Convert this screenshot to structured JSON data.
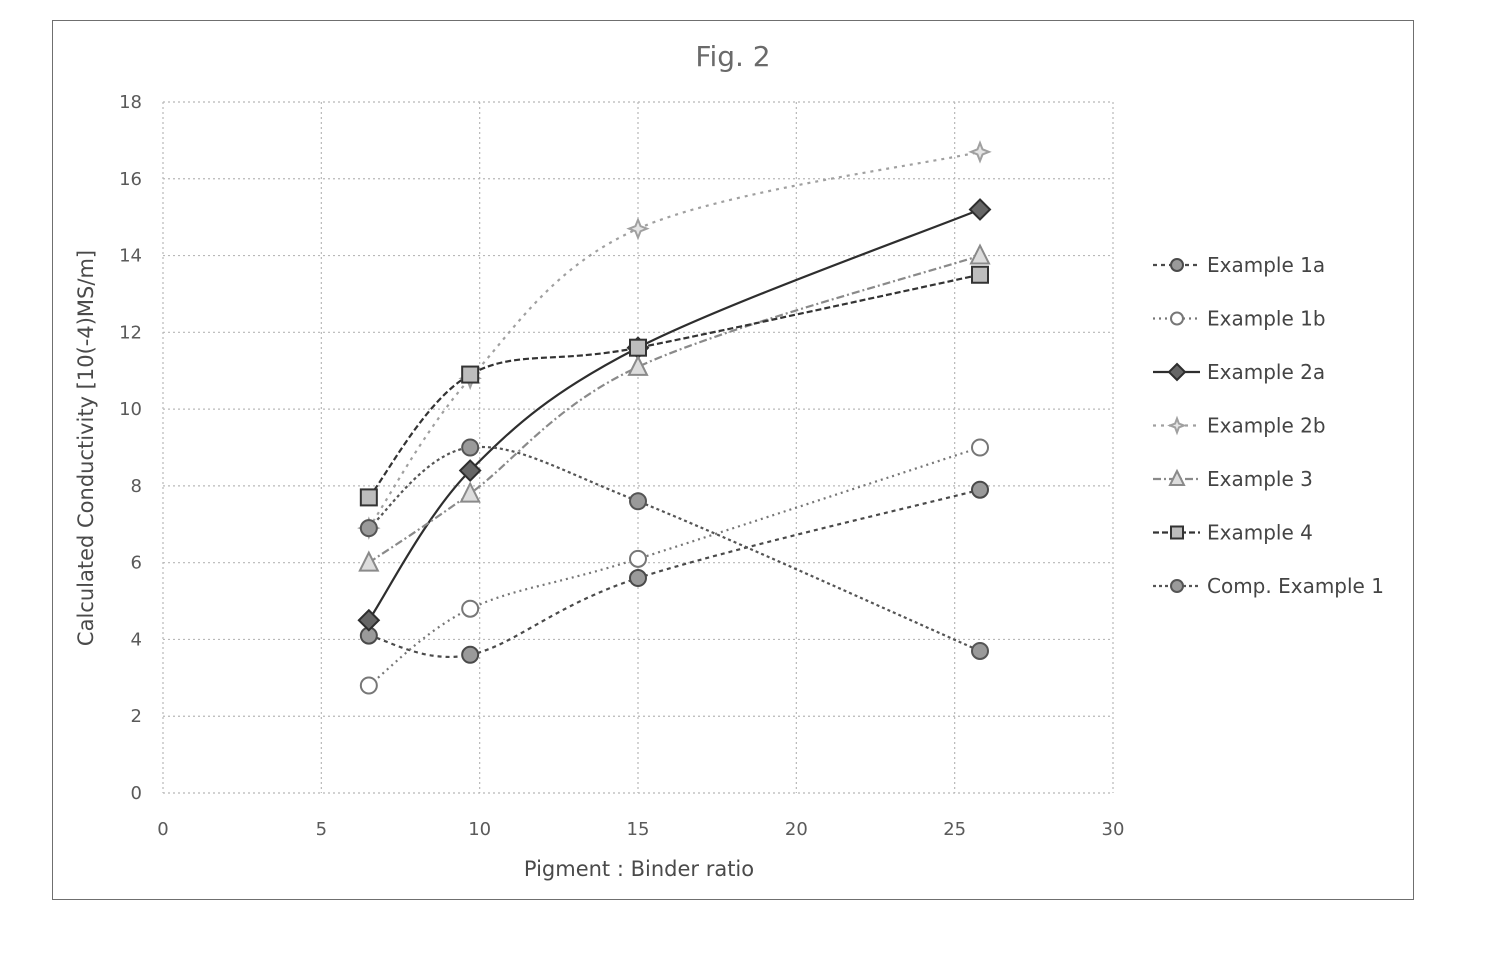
{
  "chart_data": {
    "type": "line",
    "title": "Fig. 2",
    "xlabel": "Pigment : Binder ratio",
    "ylabel": "Calculated Conductivity  [10(-4)MS/m]",
    "xlim": [
      0,
      30
    ],
    "ylim": [
      0,
      18
    ],
    "x_ticks": [
      0,
      5,
      10,
      15,
      20,
      25,
      30
    ],
    "y_ticks": [
      0,
      2,
      4,
      6,
      8,
      10,
      12,
      14,
      16,
      18
    ],
    "grid": true,
    "legend_position": "right",
    "series": [
      {
        "name": "Example 1a",
        "marker": "circle-filled",
        "dash": "4 4",
        "color": "#4a4a4a",
        "points": [
          [
            6.5,
            4.1
          ],
          [
            9.7,
            3.6
          ],
          [
            15,
            5.6
          ],
          [
            25.8,
            7.9
          ]
        ]
      },
      {
        "name": "Example 1b",
        "marker": "circle-open",
        "dash": "2 4",
        "color": "#777777",
        "points": [
          [
            6.5,
            2.8
          ],
          [
            9.7,
            4.8
          ],
          [
            15,
            6.1
          ],
          [
            25.8,
            9.0
          ]
        ]
      },
      {
        "name": "Example 2a",
        "marker": "diamond",
        "dash": "",
        "color": "#2e2e2e",
        "points": [
          [
            6.5,
            4.5
          ],
          [
            9.7,
            8.4
          ],
          [
            15,
            11.6
          ],
          [
            25.8,
            15.2
          ]
        ]
      },
      {
        "name": "Example 2b",
        "marker": "star",
        "dash": "3 5",
        "color": "#a0a0a0",
        "points": [
          [
            6.5,
            6.9
          ],
          [
            9.7,
            10.8
          ],
          [
            15,
            14.7
          ],
          [
            25.8,
            16.7
          ]
        ]
      },
      {
        "name": "Example 3",
        "marker": "triangle",
        "dash": "8 3 2 3",
        "color": "#8a8a8a",
        "points": [
          [
            6.5,
            6.0
          ],
          [
            9.7,
            7.8
          ],
          [
            15,
            11.1
          ],
          [
            25.8,
            14.0
          ]
        ]
      },
      {
        "name": "Example 4",
        "marker": "square",
        "dash": "6 3",
        "color": "#333333",
        "points": [
          [
            6.5,
            7.7
          ],
          [
            9.7,
            10.9
          ],
          [
            15,
            11.6
          ],
          [
            25.8,
            13.5
          ]
        ]
      },
      {
        "name": "Comp. Example 1",
        "marker": "circle-filled",
        "dash": "3 3",
        "color": "#555555",
        "points": [
          [
            6.5,
            6.9
          ],
          [
            9.7,
            9.0
          ],
          [
            15,
            7.6
          ],
          [
            25.8,
            3.7
          ]
        ]
      }
    ]
  }
}
